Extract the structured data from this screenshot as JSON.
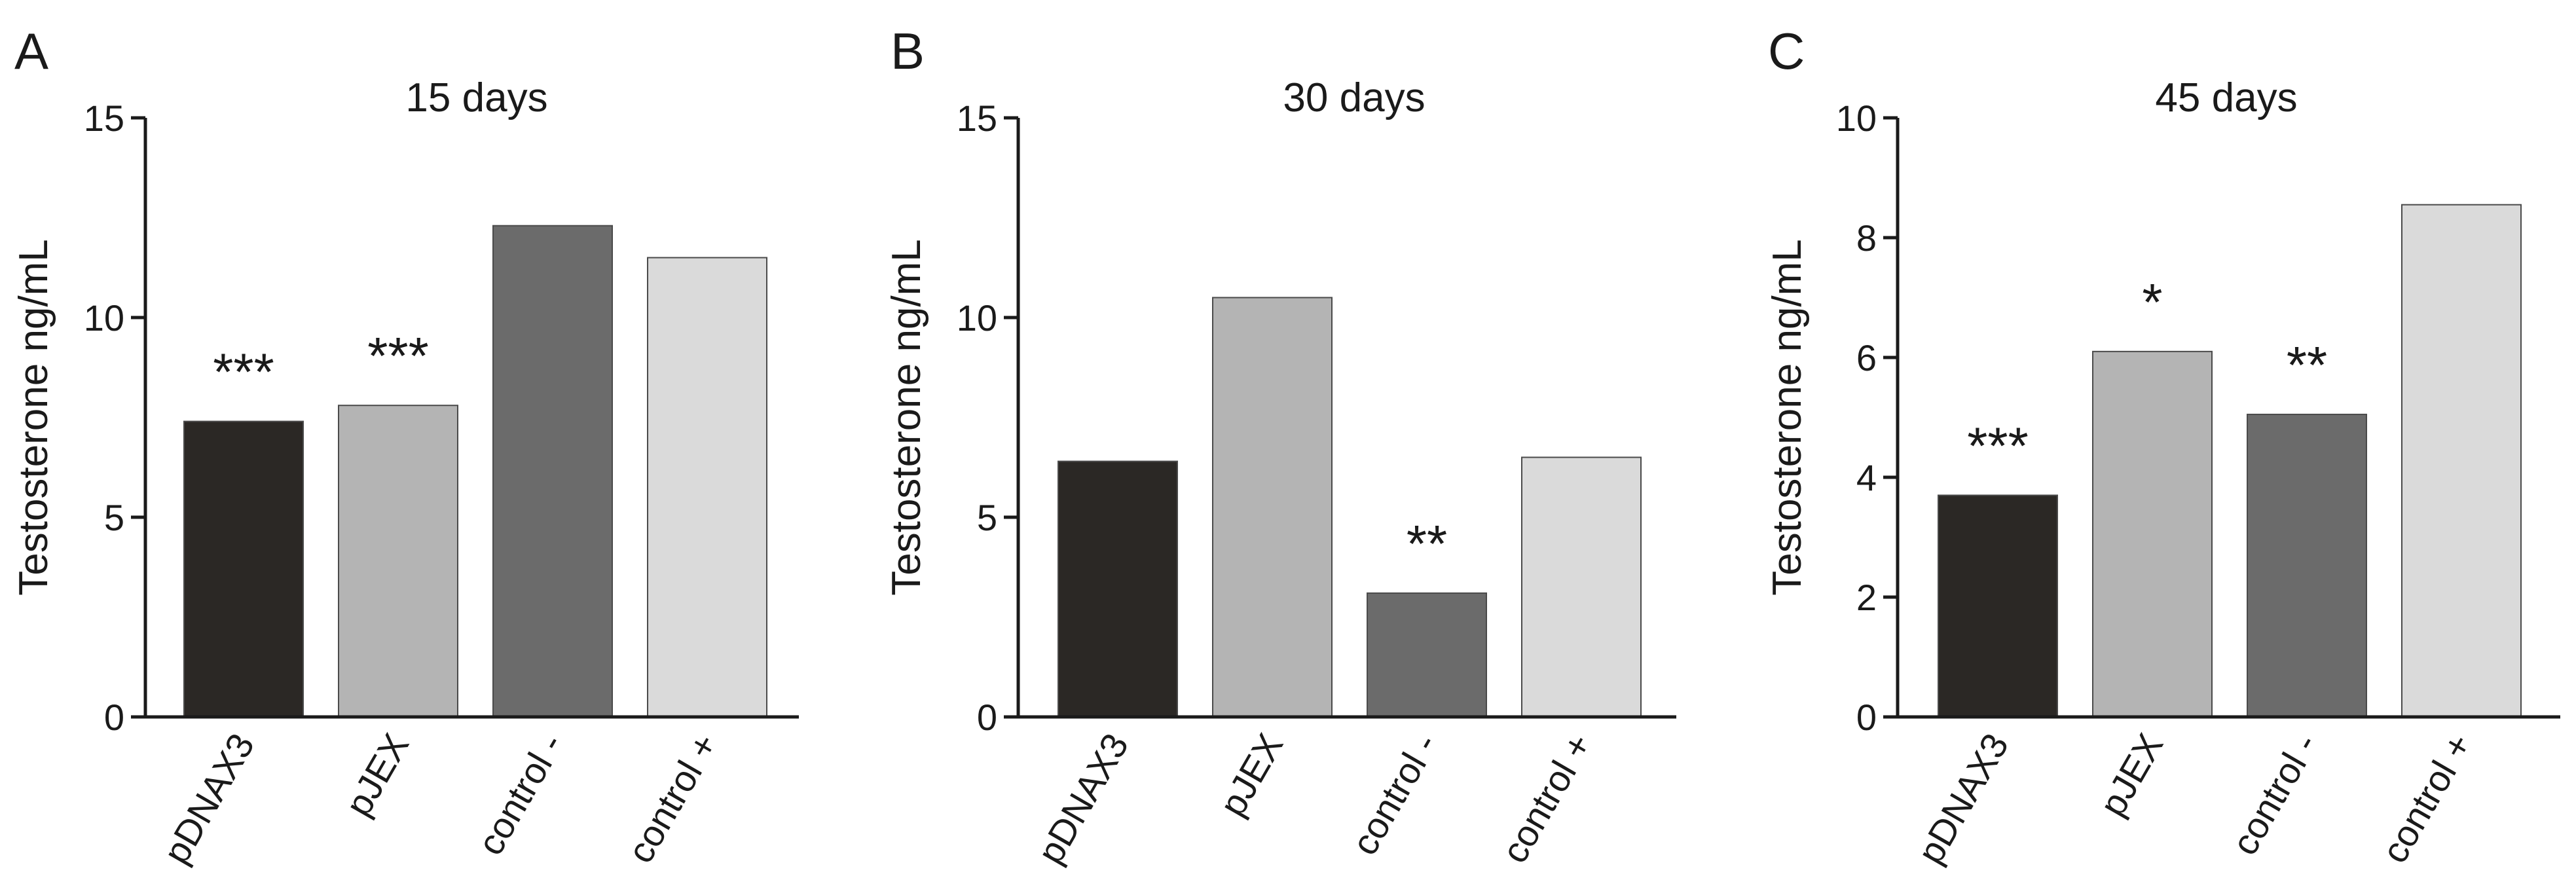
{
  "colors": {
    "axis": "#1a1a1a",
    "bar_stroke": "#4a4a4a"
  },
  "chart_data": [
    {
      "type": "bar",
      "panel": "A",
      "title": "15 days",
      "ylabel": "Testosterone ng/mL",
      "ylim": [
        0,
        15
      ],
      "yticks": [
        "0",
        "5",
        "10",
        "15"
      ],
      "categories": [
        "pDNAX3",
        "pJEX",
        "control -",
        "control +"
      ],
      "values": [
        7.4,
        7.8,
        12.3,
        11.5
      ],
      "significance": [
        "***",
        "***",
        "",
        ""
      ],
      "bar_colors": [
        "#2b2825",
        "#b4b4b4",
        "#6b6b6b",
        "#dadada"
      ]
    },
    {
      "type": "bar",
      "panel": "B",
      "title": "30 days",
      "ylabel": "Testosterone ng/mL",
      "ylim": [
        0,
        15
      ],
      "yticks": [
        "0",
        "5",
        "10",
        "15"
      ],
      "categories": [
        "pDNAX3",
        "pJEX",
        "control -",
        "control +"
      ],
      "values": [
        6.4,
        10.5,
        3.1,
        6.5
      ],
      "significance": [
        "",
        "",
        "**",
        ""
      ],
      "bar_colors": [
        "#2b2825",
        "#b4b4b4",
        "#6b6b6b",
        "#dadada"
      ]
    },
    {
      "type": "bar",
      "panel": "C",
      "title": "45 days",
      "ylabel": "Testosterone ng/mL",
      "ylim": [
        0,
        10
      ],
      "yticks": [
        "0",
        "2",
        "4",
        "6",
        "8",
        "10"
      ],
      "categories": [
        "pDNAX3",
        "pJEX",
        "control -",
        "control +"
      ],
      "values": [
        3.7,
        6.1,
        5.05,
        8.55
      ],
      "significance": [
        "***",
        "*",
        "**",
        ""
      ],
      "bar_colors": [
        "#2b2825",
        "#b4b4b4",
        "#6b6b6b",
        "#dadada"
      ]
    }
  ]
}
